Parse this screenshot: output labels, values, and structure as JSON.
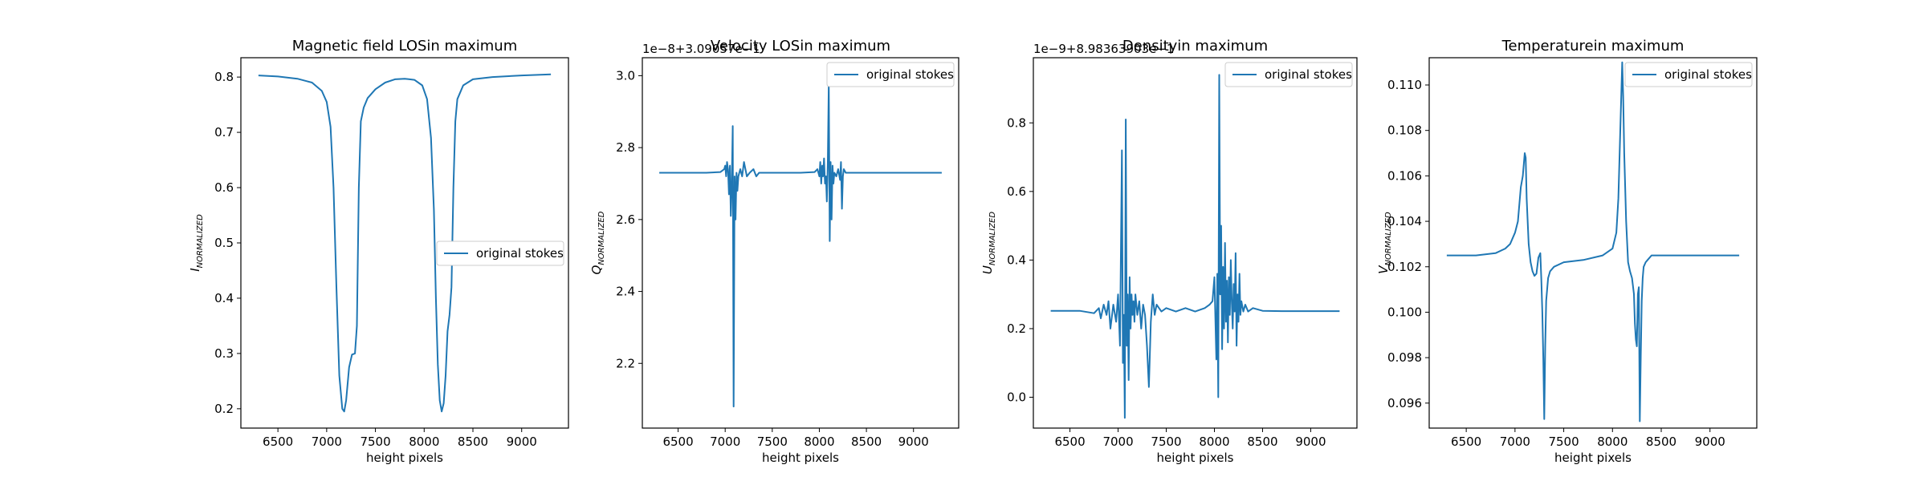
{
  "chart_data": [
    {
      "type": "line",
      "title": "Magnetic field LOSin maximum",
      "xlabel": "height pixels",
      "ylabel": {
        "main": "I",
        "sub": "NORMALIZED"
      },
      "offset_text": "",
      "xlim": [
        6120,
        9480
      ],
      "ylim": [
        0.165,
        0.835
      ],
      "xticks": [
        6500,
        7000,
        7500,
        8000,
        8500,
        9000
      ],
      "yticks": [
        0.2,
        0.3,
        0.4,
        0.5,
        0.6,
        0.7,
        0.8
      ],
      "legend": {
        "labels": [
          "original stokes"
        ],
        "placement": "center-right"
      },
      "series": [
        {
          "name": "original stokes",
          "color": "#1f77b4",
          "x": [
            6300,
            6500,
            6700,
            6850,
            6950,
            7000,
            7040,
            7070,
            7100,
            7130,
            7160,
            7180,
            7200,
            7230,
            7260,
            7290,
            7310,
            7330,
            7350,
            7380,
            7420,
            7500,
            7600,
            7700,
            7800,
            7900,
            7980,
            8030,
            8070,
            8100,
            8120,
            8140,
            8160,
            8180,
            8200,
            8220,
            8240,
            8260,
            8280,
            8300,
            8320,
            8340,
            8400,
            8500,
            8700,
            9000,
            9300
          ],
          "y": [
            0.803,
            0.801,
            0.797,
            0.79,
            0.775,
            0.755,
            0.71,
            0.6,
            0.42,
            0.26,
            0.2,
            0.195,
            0.215,
            0.275,
            0.298,
            0.3,
            0.35,
            0.6,
            0.72,
            0.745,
            0.762,
            0.778,
            0.79,
            0.796,
            0.797,
            0.795,
            0.785,
            0.76,
            0.69,
            0.56,
            0.4,
            0.28,
            0.215,
            0.195,
            0.21,
            0.26,
            0.34,
            0.37,
            0.42,
            0.6,
            0.72,
            0.76,
            0.785,
            0.796,
            0.8,
            0.803,
            0.805
          ]
        }
      ]
    },
    {
      "type": "line",
      "title": "Velocity LOSin maximum",
      "xlabel": "height pixels",
      "ylabel": {
        "main": "Q",
        "sub": "NORMALIZED"
      },
      "offset_text": "1e−8+3.09057e−1",
      "xlim": [
        6120,
        9480
      ],
      "ylim": [
        2.02,
        3.05
      ],
      "xticks": [
        6500,
        7000,
        7500,
        8000,
        8500,
        9000
      ],
      "yticks": [
        2.2,
        2.4,
        2.6,
        2.8,
        3.0
      ],
      "legend": {
        "labels": [
          "original stokes"
        ],
        "placement": "top-right"
      },
      "series": [
        {
          "name": "original stokes",
          "color": "#1f77b4",
          "x": [
            6300,
            6800,
            6950,
            6990,
            7000,
            7010,
            7020,
            7030,
            7040,
            7050,
            7060,
            7070,
            7080,
            7090,
            7100,
            7110,
            7120,
            7130,
            7140,
            7160,
            7180,
            7200,
            7230,
            7260,
            7300,
            7330,
            7360,
            7400,
            7500,
            7800,
            7950,
            7980,
            8000,
            8010,
            8020,
            8030,
            8040,
            8050,
            8060,
            8070,
            8080,
            8090,
            8100,
            8110,
            8120,
            8130,
            8140,
            8150,
            8160,
            8180,
            8200,
            8220,
            8230,
            8240,
            8250,
            8260,
            8280,
            8300,
            8350,
            8600,
            9300
          ],
          "y": [
            2.73,
            2.73,
            2.732,
            2.74,
            2.75,
            2.72,
            2.76,
            2.74,
            2.67,
            2.75,
            2.61,
            2.7,
            2.86,
            2.08,
            2.72,
            2.6,
            2.73,
            2.68,
            2.72,
            2.74,
            2.72,
            2.76,
            2.72,
            2.73,
            2.74,
            2.72,
            2.73,
            2.73,
            2.73,
            2.73,
            2.732,
            2.74,
            2.72,
            2.76,
            2.7,
            2.75,
            2.72,
            2.77,
            2.7,
            2.72,
            2.65,
            2.76,
            2.98,
            2.54,
            2.76,
            2.6,
            2.75,
            2.7,
            2.73,
            2.72,
            2.74,
            2.71,
            2.76,
            2.63,
            2.72,
            2.74,
            2.73,
            2.73,
            2.73,
            2.73,
            2.73
          ]
        }
      ]
    },
    {
      "type": "line",
      "title": "Densityin maximum",
      "xlabel": "height pixels",
      "ylabel": {
        "main": "U",
        "sub": "NORMALIZED"
      },
      "offset_text": "1e−9+8.98363903e−1",
      "xlim": [
        6120,
        9480
      ],
      "ylim": [
        -0.09,
        0.99
      ],
      "xticks": [
        6500,
        7000,
        7500,
        8000,
        8500,
        9000
      ],
      "yticks": [
        0.0,
        0.2,
        0.4,
        0.6,
        0.8
      ],
      "legend": {
        "labels": [
          "original stokes"
        ],
        "placement": "top-right"
      },
      "series": [
        {
          "name": "original stokes",
          "color": "#1f77b4",
          "x": [
            6300,
            6600,
            6750,
            6800,
            6820,
            6850,
            6880,
            6900,
            6920,
            6950,
            6980,
            7000,
            7020,
            7040,
            7050,
            7060,
            7070,
            7080,
            7090,
            7100,
            7110,
            7120,
            7130,
            7140,
            7150,
            7160,
            7170,
            7180,
            7200,
            7220,
            7240,
            7260,
            7280,
            7300,
            7320,
            7340,
            7360,
            7380,
            7400,
            7450,
            7500,
            7600,
            7700,
            7800,
            7900,
            7950,
            7980,
            8000,
            8020,
            8030,
            8040,
            8050,
            8060,
            8070,
            8080,
            8090,
            8100,
            8110,
            8120,
            8130,
            8140,
            8150,
            8160,
            8170,
            8180,
            8190,
            8200,
            8210,
            8220,
            8230,
            8240,
            8250,
            8260,
            8270,
            8280,
            8300,
            8320,
            8350,
            8400,
            8500,
            8700,
            9300
          ],
          "y": [
            0.252,
            0.252,
            0.245,
            0.26,
            0.23,
            0.27,
            0.24,
            0.28,
            0.2,
            0.27,
            0.22,
            0.3,
            0.15,
            0.72,
            0.1,
            0.24,
            -0.06,
            0.81,
            0.15,
            0.3,
            0.05,
            0.35,
            0.2,
            0.3,
            0.24,
            0.28,
            0.22,
            0.3,
            0.24,
            0.28,
            0.2,
            0.27,
            0.24,
            0.15,
            0.03,
            0.22,
            0.3,
            0.24,
            0.27,
            0.25,
            0.26,
            0.25,
            0.26,
            0.25,
            0.26,
            0.27,
            0.28,
            0.35,
            0.11,
            0.36,
            0.0,
            0.94,
            0.3,
            0.5,
            0.14,
            0.38,
            0.2,
            0.45,
            0.22,
            0.34,
            0.16,
            0.35,
            0.24,
            0.4,
            0.28,
            0.2,
            0.33,
            0.25,
            0.42,
            0.15,
            0.3,
            0.22,
            0.36,
            0.24,
            0.28,
            0.25,
            0.27,
            0.25,
            0.26,
            0.252,
            0.251,
            0.251
          ]
        }
      ]
    },
    {
      "type": "line",
      "title": "Temperaturein maximum",
      "xlabel": "height pixels",
      "ylabel": {
        "main": "V",
        "sub": "NORMALIZED"
      },
      "offset_text": "",
      "xlim": [
        6120,
        9480
      ],
      "ylim": [
        0.0949,
        0.1112
      ],
      "xticks": [
        6500,
        7000,
        7500,
        8000,
        8500,
        9000
      ],
      "yticks": [
        0.096,
        0.098,
        0.1,
        0.102,
        0.104,
        0.106,
        0.108,
        0.11
      ],
      "legend": {
        "labels": [
          "original stokes"
        ],
        "placement": "top-right"
      },
      "series": [
        {
          "name": "original stokes",
          "color": "#1f77b4",
          "x": [
            6300,
            6600,
            6800,
            6900,
            6950,
            7000,
            7030,
            7060,
            7080,
            7100,
            7110,
            7120,
            7140,
            7160,
            7180,
            7200,
            7220,
            7240,
            7260,
            7270,
            7280,
            7290,
            7300,
            7310,
            7320,
            7340,
            7360,
            7400,
            7500,
            7700,
            7900,
            8000,
            8040,
            8060,
            8080,
            8100,
            8110,
            8120,
            8140,
            8160,
            8180,
            8200,
            8220,
            8230,
            8240,
            8250,
            8260,
            8270,
            8280,
            8290,
            8300,
            8310,
            8320,
            8340,
            8360,
            8400,
            8500,
            9000,
            9300
          ],
          "y": [
            0.1025,
            0.1025,
            0.1026,
            0.1028,
            0.103,
            0.1035,
            0.104,
            0.1055,
            0.106,
            0.107,
            0.1068,
            0.105,
            0.103,
            0.1022,
            0.1018,
            0.1016,
            0.1017,
            0.1024,
            0.1026,
            0.1015,
            0.1,
            0.098,
            0.0953,
            0.0985,
            0.1005,
            0.1015,
            0.1018,
            0.102,
            0.1022,
            0.1023,
            0.1025,
            0.1028,
            0.1035,
            0.105,
            0.108,
            0.111,
            0.1095,
            0.107,
            0.104,
            0.1022,
            0.1018,
            0.1015,
            0.1008,
            0.0995,
            0.0988,
            0.0985,
            0.1008,
            0.1011,
            0.0952,
            0.098,
            0.1005,
            0.1015,
            0.102,
            0.1022,
            0.1023,
            0.1025,
            0.1025,
            0.1025,
            0.1025
          ]
        }
      ]
    }
  ]
}
